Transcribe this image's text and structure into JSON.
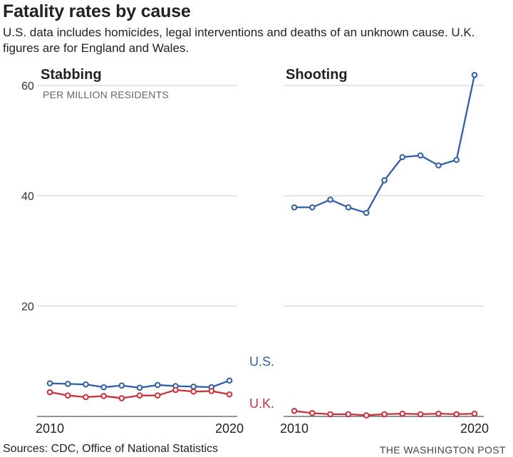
{
  "title": "Fatality rates by cause",
  "subtitle": "U.S. data includes homicides, legal interventions and deaths of an unknown cause. U.K. figures are for England and Wales.",
  "colors": {
    "us": "#2f5fa6",
    "uk": "#c8303a"
  },
  "footer": {
    "sources": "Sources: CDC, Office of National Statistics",
    "credit": "THE WASHINGTON POST"
  },
  "chart_data": [
    {
      "type": "line",
      "title": "Stabbing",
      "ylabel": "PER MILLION RESIDENTS",
      "x": [
        2010,
        2011,
        2012,
        2013,
        2014,
        2015,
        2016,
        2017,
        2018,
        2019,
        2020
      ],
      "xticks": [
        "2010",
        "2020"
      ],
      "yticks": [
        "20",
        "40",
        "60"
      ],
      "ylim": [
        0,
        60
      ],
      "grid": true,
      "series": [
        {
          "name": "U.S.",
          "color": "#2f5fa6",
          "values": [
            6.0,
            5.9,
            5.8,
            5.3,
            5.6,
            5.2,
            5.7,
            5.5,
            5.4,
            5.3,
            6.5
          ]
        },
        {
          "name": "U.K.",
          "color": "#c8303a",
          "values": [
            4.4,
            3.8,
            3.5,
            3.7,
            3.3,
            3.8,
            3.8,
            4.8,
            4.5,
            4.6,
            4.0
          ]
        }
      ]
    },
    {
      "type": "line",
      "title": "Shooting",
      "x": [
        2010,
        2011,
        2012,
        2013,
        2014,
        2015,
        2016,
        2017,
        2018,
        2019,
        2020
      ],
      "xticks": [
        "2010",
        "2020"
      ],
      "ylim": [
        0,
        60
      ],
      "grid": true,
      "series": [
        {
          "name": "U.S.",
          "color": "#2f5fa6",
          "values": [
            37.9,
            37.9,
            39.3,
            37.9,
            36.9,
            42.8,
            47.0,
            47.3,
            45.5,
            46.5,
            61.9
          ]
        },
        {
          "name": "U.K.",
          "color": "#c8303a",
          "values": [
            1.0,
            0.6,
            0.4,
            0.4,
            0.2,
            0.4,
            0.5,
            0.4,
            0.5,
            0.4,
            0.5
          ]
        }
      ]
    }
  ]
}
